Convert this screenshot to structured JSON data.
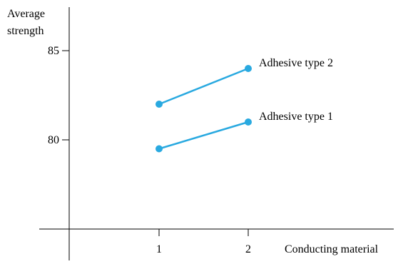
{
  "chart_data": {
    "type": "line",
    "title": "",
    "ylabel_lines": [
      "Average",
      "strength"
    ],
    "xlabel": "Conducting material",
    "x": [
      1,
      2
    ],
    "x_tick_labels": [
      "1",
      "2"
    ],
    "y_ticks": [
      80,
      85
    ],
    "y_tick_labels": [
      "80",
      "85"
    ],
    "ylim": [
      75,
      88
    ],
    "xlim": [
      0,
      3.8
    ],
    "grid": false,
    "legend": "none",
    "series": [
      {
        "name": "Adhesive type 1",
        "x": [
          1,
          2
        ],
        "values": [
          79.5,
          81.0
        ]
      },
      {
        "name": "Adhesive type 2",
        "x": [
          1,
          2
        ],
        "values": [
          82.0,
          84.0
        ]
      }
    ],
    "colors": {
      "series": "#29a9e0",
      "axes": "#000000"
    }
  }
}
